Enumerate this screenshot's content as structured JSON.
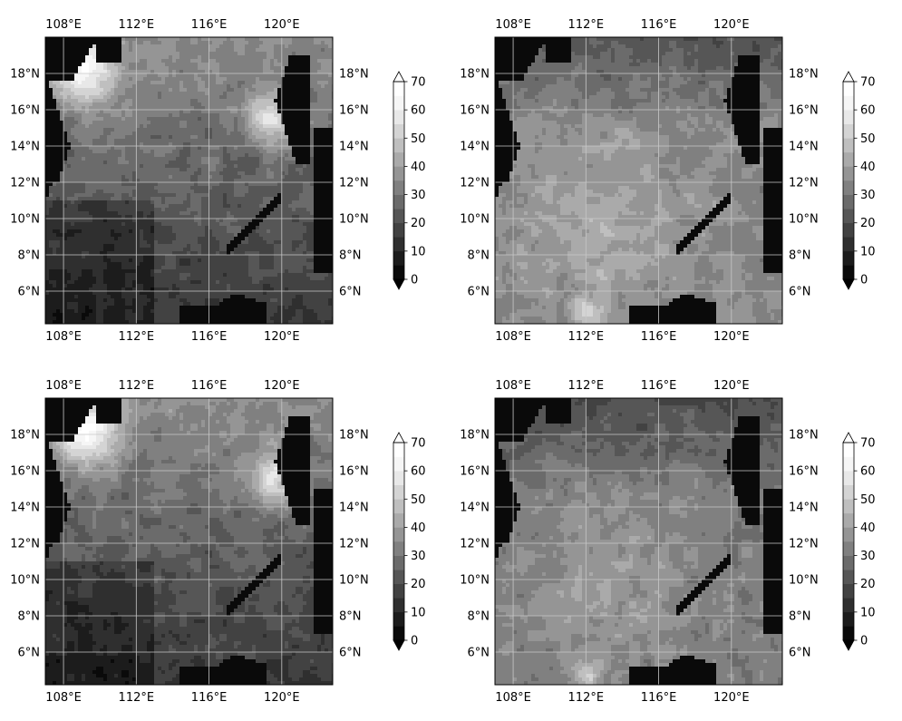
{
  "chart_data": [
    {
      "type": "heatmap",
      "projection": "lat-lon map",
      "position": "top-left",
      "x_ticks": [
        "108°E",
        "112°E",
        "116°E",
        "120°E"
      ],
      "y_ticks": [
        "6°N",
        "8°N",
        "10°N",
        "12°N",
        "14°N",
        "16°N",
        "18°N"
      ],
      "x_ticks_values": [
        108,
        112,
        116,
        120
      ],
      "y_ticks_values": [
        6,
        8,
        10,
        12,
        14,
        16,
        18
      ],
      "xlim": [
        107,
        122.8
      ],
      "ylim": [
        4.2,
        20
      ],
      "grid": true,
      "colormap": "gray",
      "colorbar": {
        "ticks": [
          "0",
          "10",
          "20",
          "30",
          "40",
          "50",
          "60",
          "70"
        ],
        "levels": [
          0,
          70
        ],
        "extend": "both"
      },
      "field_summary": "dark (low) values over land at west and east edges; bright band ~50-60 near 108-110°E 17-19°N and 119-121°E 14-17°N; mid-grey ~20-35 over central sea; darker south-west"
    },
    {
      "type": "heatmap",
      "projection": "lat-lon map",
      "position": "top-right",
      "x_ticks": [
        "108°E",
        "112°E",
        "116°E",
        "120°E"
      ],
      "y_ticks": [
        "6°N",
        "8°N",
        "10°N",
        "12°N",
        "14°N",
        "16°N",
        "18°N"
      ],
      "x_ticks_values": [
        108,
        112,
        116,
        120
      ],
      "y_ticks_values": [
        6,
        8,
        10,
        12,
        14,
        16,
        18
      ],
      "xlim": [
        107,
        122.8
      ],
      "ylim": [
        4.2,
        20
      ],
      "grid": true,
      "colormap": "gray",
      "colorbar": {
        "ticks": [
          "0",
          "10",
          "20",
          "30",
          "40",
          "50",
          "60",
          "70"
        ],
        "levels": [
          0,
          70
        ],
        "extend": "both"
      },
      "field_summary": "dark over land; mostly mid-to-light grey ~30-45 across central and southern sea; lighter patches ~45-50 near 112°E 5°N"
    },
    {
      "type": "heatmap",
      "projection": "lat-lon map",
      "position": "bottom-left",
      "x_ticks": [
        "108°E",
        "112°E",
        "116°E",
        "120°E"
      ],
      "y_ticks": [
        "6°N",
        "8°N",
        "10°N",
        "12°N",
        "14°N",
        "16°N",
        "18°N"
      ],
      "x_ticks_values": [
        108,
        112,
        116,
        120
      ],
      "y_ticks_values": [
        6,
        8,
        10,
        12,
        14,
        16,
        18
      ],
      "xlim": [
        107,
        122.8
      ],
      "ylim": [
        4.2,
        20
      ],
      "grid": true,
      "colormap": "gray",
      "colorbar": {
        "ticks": [
          "0",
          "10",
          "20",
          "30",
          "40",
          "50",
          "60",
          "70"
        ],
        "levels": [
          0,
          70
        ],
        "extend": "both"
      },
      "field_summary": "similar to top-left: bright 50-60 near northern coasts, mid-grey centre, darker south-west"
    },
    {
      "type": "heatmap",
      "projection": "lat-lon map",
      "position": "bottom-right",
      "x_ticks": [
        "108°E",
        "112°E",
        "116°E",
        "120°E"
      ],
      "y_ticks": [
        "6°N",
        "8°N",
        "10°N",
        "12°N",
        "14°N",
        "16°N",
        "18°N"
      ],
      "x_ticks_values": [
        108,
        112,
        116,
        120
      ],
      "y_ticks_values": [
        6,
        8,
        10,
        12,
        14,
        16,
        18
      ],
      "xlim": [
        107,
        122.8
      ],
      "ylim": [
        4.2,
        20
      ],
      "grid": true,
      "colormap": "gray",
      "colorbar": {
        "ticks": [
          "0",
          "10",
          "20",
          "30",
          "40",
          "50",
          "60",
          "70"
        ],
        "levels": [
          0,
          70
        ],
        "extend": "both"
      },
      "field_summary": "similar to top-right: darker north ~20-30, lighter grey ~35-45 over central/southern sea"
    }
  ],
  "colors": {
    "land": "#0a0a0a",
    "grid": "#c8c8c8",
    "frame": "#000000",
    "colorbar_levels": [
      "#0a0a0a",
      "#1c1c1c",
      "#2f2f2f",
      "#424242",
      "#565656",
      "#6b6b6b",
      "#808080",
      "#959595",
      "#aaaaaa",
      "#bfbfbf",
      "#d4d4d4",
      "#e8e8e8",
      "#f6f6f6",
      "#ffffff"
    ]
  }
}
